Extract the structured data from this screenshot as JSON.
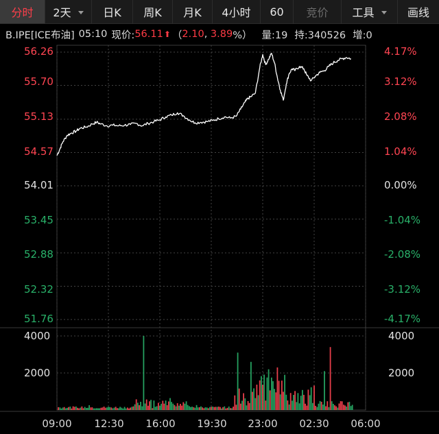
{
  "toolbar": {
    "tabs": [
      {
        "label": "分时",
        "active": true
      },
      {
        "label": "2天",
        "dropdown": true
      },
      {
        "label": "日K"
      },
      {
        "label": "周K"
      },
      {
        "label": "月K"
      },
      {
        "label": "4小时"
      },
      {
        "label": "60"
      },
      {
        "label": "竞价",
        "disabled": true
      },
      {
        "label": "工具",
        "dropdown": true
      },
      {
        "label": "画线"
      }
    ]
  },
  "quote": {
    "symbol": "B.IPE[ICE布油]",
    "time": "05:10",
    "price_label": "现价:",
    "price": "56.11",
    "change_open": "（",
    "change": "2.10",
    "change_pct": "3.89",
    "pct_sign": "%）",
    "volume": "量:19",
    "open_interest": "持:340526",
    "increase": "增:0",
    "arrow_icon": "arrow-up-icon"
  },
  "colors": {
    "up": "#ff4552",
    "down": "#29b169",
    "line": "#ffffff",
    "grid": "#444444"
  },
  "chart_data": {
    "type": "line",
    "x_ticks": [
      "09:00",
      "12:30",
      "16:00",
      "19:30",
      "23:00",
      "02:30",
      "06:00"
    ],
    "price_axis": [
      "56.26",
      "55.70",
      "55.13",
      "54.57",
      "54.01",
      "53.45",
      "52.88",
      "52.32",
      "51.76"
    ],
    "pct_axis": [
      "4.17%",
      "3.12%",
      "2.08%",
      "1.04%",
      "0.00%",
      "-1.04%",
      "-2.08%",
      "-3.12%",
      "-4.17%"
    ],
    "ylim": [
      51.76,
      56.26
    ],
    "base_price": 54.01,
    "volume_axis": [
      "4000",
      "2000"
    ],
    "volume_ylim": [
      0,
      4000
    ],
    "price_series": [
      [
        0.0,
        54.52
      ],
      [
        0.2,
        54.63
      ],
      [
        0.4,
        54.75
      ],
      [
        0.7,
        54.86
      ],
      [
        1.0,
        54.9
      ],
      [
        1.3,
        54.93
      ],
      [
        1.6,
        54.98
      ],
      [
        2.0,
        55.0
      ],
      [
        2.4,
        55.05
      ],
      [
        2.7,
        55.08
      ],
      [
        3.0,
        55.05
      ],
      [
        3.4,
        55.02
      ],
      [
        3.8,
        55.03
      ],
      [
        4.2,
        55.02
      ],
      [
        4.6,
        55.03
      ],
      [
        5.0,
        55.04
      ],
      [
        5.4,
        55.06
      ],
      [
        5.8,
        55.02
      ],
      [
        6.2,
        55.06
      ],
      [
        6.6,
        55.09
      ],
      [
        7.0,
        55.12
      ],
      [
        7.4,
        55.17
      ],
      [
        7.8,
        55.2
      ],
      [
        8.2,
        55.24
      ],
      [
        8.6,
        55.19
      ],
      [
        9.0,
        55.12
      ],
      [
        9.4,
        55.07
      ],
      [
        9.8,
        55.08
      ],
      [
        10.2,
        55.09
      ],
      [
        10.6,
        55.11
      ],
      [
        11.0,
        55.14
      ],
      [
        11.4,
        55.17
      ],
      [
        11.8,
        55.15
      ],
      [
        12.2,
        55.18
      ],
      [
        12.5,
        55.3
      ],
      [
        12.8,
        55.42
      ],
      [
        13.0,
        55.48
      ],
      [
        13.2,
        55.51
      ],
      [
        13.5,
        55.57
      ],
      [
        13.8,
        56.0
      ],
      [
        14.0,
        56.22
      ],
      [
        14.2,
        56.05
      ],
      [
        14.4,
        56.14
      ],
      [
        14.6,
        56.24
      ],
      [
        14.8,
        56.08
      ],
      [
        15.0,
        55.83
      ],
      [
        15.2,
        55.62
      ],
      [
        15.4,
        55.45
      ],
      [
        15.6,
        55.72
      ],
      [
        15.8,
        55.9
      ],
      [
        16.0,
        55.98
      ],
      [
        16.2,
        55.95
      ],
      [
        16.5,
        56.02
      ],
      [
        16.8,
        55.98
      ],
      [
        17.0,
        55.87
      ],
      [
        17.3,
        55.78
      ],
      [
        17.6,
        55.86
      ],
      [
        17.9,
        55.92
      ],
      [
        18.2,
        55.95
      ],
      [
        18.5,
        56.02
      ],
      [
        18.8,
        56.08
      ],
      [
        19.1,
        56.12
      ],
      [
        19.4,
        56.15
      ],
      [
        19.7,
        56.17
      ],
      [
        20.0,
        56.15
      ]
    ],
    "volume_bars": []
  }
}
